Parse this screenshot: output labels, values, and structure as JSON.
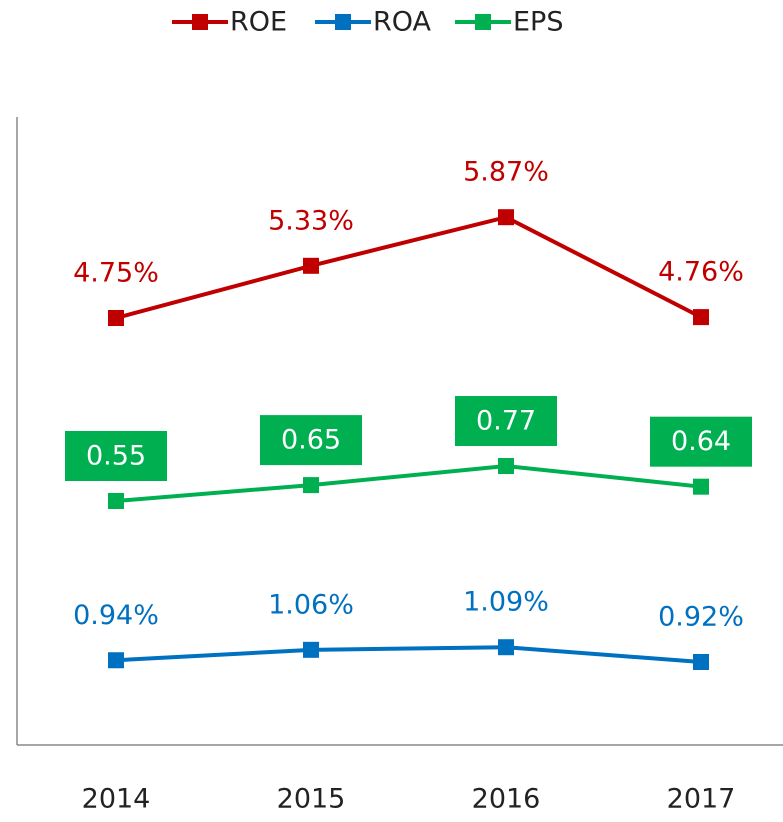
{
  "chart_data": {
    "type": "line",
    "categories": [
      "2014",
      "2015",
      "2016",
      "2017"
    ],
    "series": [
      {
        "name": "ROE",
        "color": "#c00000",
        "values": [
          4.75,
          5.33,
          5.87,
          4.76
        ],
        "value_labels": [
          "4.75%",
          "5.33%",
          "5.87%",
          "4.76%"
        ]
      },
      {
        "name": "ROA",
        "color": "#0070c0",
        "values": [
          0.94,
          1.06,
          1.09,
          0.92
        ],
        "value_labels": [
          "0.94%",
          "1.06%",
          "1.09%",
          "0.92%"
        ]
      },
      {
        "name": "EPS",
        "color": "#00b050",
        "values": [
          0.55,
          0.65,
          0.77,
          0.64
        ]
      }
    ]
  }
}
